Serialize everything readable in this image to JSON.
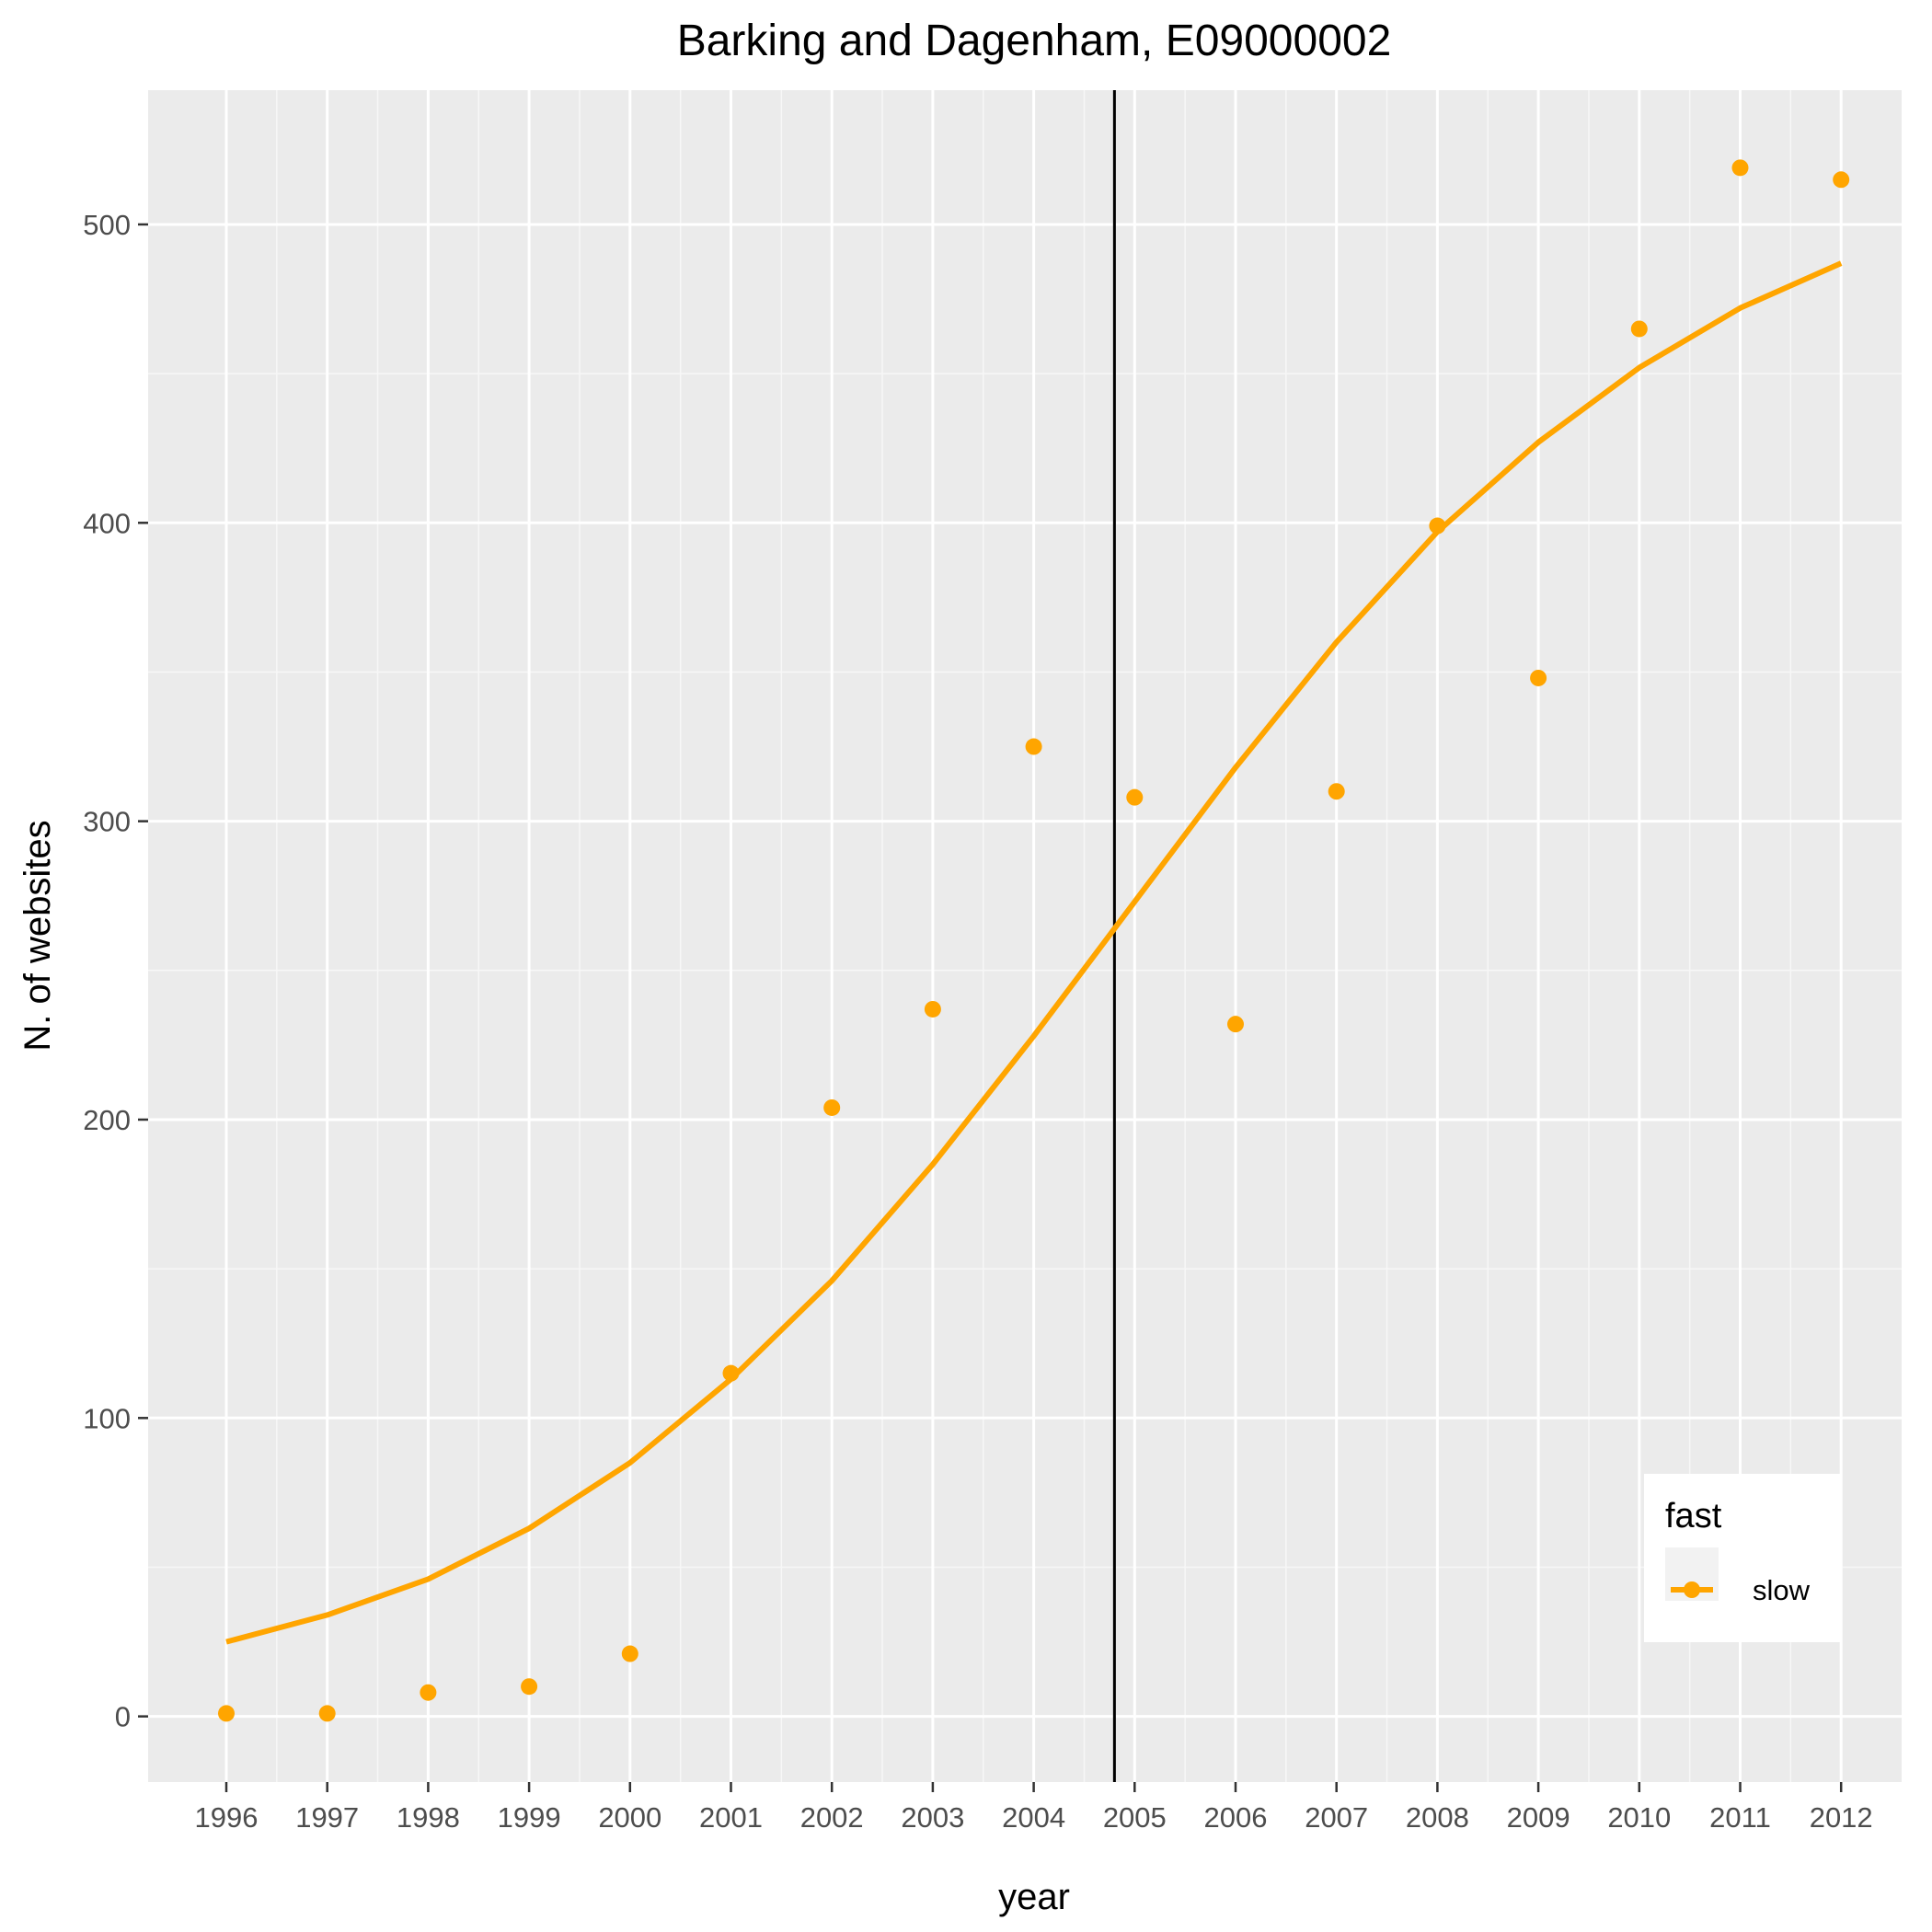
{
  "chart_data": {
    "type": "line",
    "title": "Barking and Dagenham, E09000002",
    "xlabel": "year",
    "ylabel": "N. of websites",
    "categories": [
      "1996",
      "1997",
      "1998",
      "1999",
      "2000",
      "2001",
      "2002",
      "2003",
      "2004",
      "2005",
      "2006",
      "2007",
      "2008",
      "2009",
      "2010",
      "2011",
      "2012"
    ],
    "y_ticks": [
      "0",
      "100",
      "200",
      "300",
      "400",
      "500"
    ],
    "ylim": [
      -22,
      545
    ],
    "grid": true,
    "vline_x": 2004.8,
    "series": [
      {
        "name": "slow",
        "color": "#FFA500",
        "points": [
          1,
          1,
          8,
          10,
          21,
          115,
          204,
          237,
          325,
          308,
          232,
          310,
          399,
          348,
          465,
          519,
          515
        ],
        "trend": [
          25,
          34,
          46,
          63,
          85,
          113,
          146,
          185,
          228,
          273,
          318,
          360,
          397,
          427,
          452,
          472,
          487
        ]
      }
    ],
    "legend": {
      "title": "fast",
      "placement": "bottom-right",
      "entries": [
        "slow"
      ]
    }
  }
}
